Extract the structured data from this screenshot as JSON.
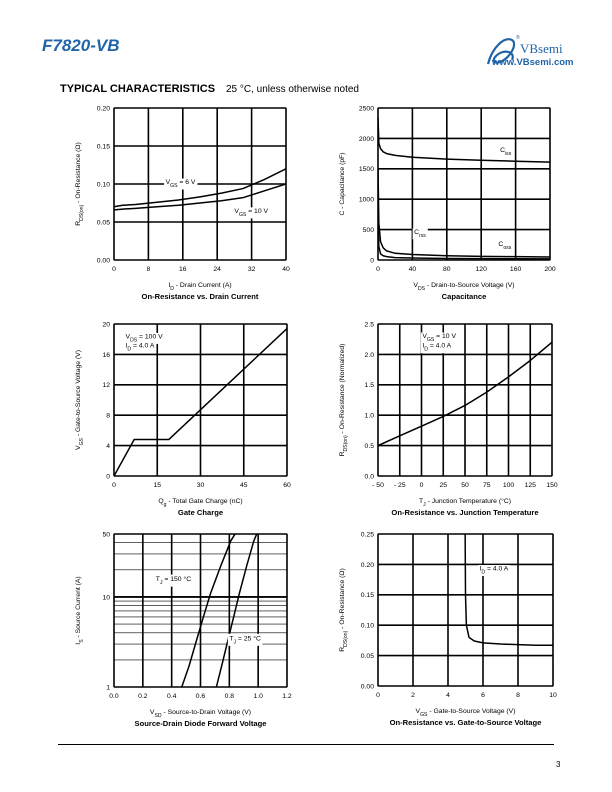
{
  "header": {
    "part_number": "F7820-VB",
    "brand_name": "VBsemi",
    "brand_url": "www.VBsemi.com",
    "registered_mark": "®",
    "brand_color": "#1f63a8"
  },
  "section": {
    "title": "TYPICAL CHARACTERISTICS",
    "subtitle": "25 °C, unless otherwise noted"
  },
  "footer": {
    "page_number": "3"
  },
  "chart_data": [
    {
      "id": "c1",
      "type": "line",
      "title": "On-Resistance vs. Drain Current",
      "xlabel": "I_D - Drain Current (A)",
      "ylabel": "R_DS(on) - On-Resistance (Ω)",
      "xlim": [
        0,
        40
      ],
      "ylim": [
        0,
        0.2
      ],
      "xticks": [
        0,
        8,
        16,
        24,
        32,
        40
      ],
      "yticks": [
        0,
        0.05,
        0.1,
        0.15,
        0.2
      ],
      "ytick_labels": [
        "0.00",
        "0.05",
        "0.10",
        "0.15",
        "0.20"
      ],
      "grid": true,
      "series": [
        {
          "name": "V_GS = 6 V",
          "x": [
            0,
            2,
            5,
            10,
            15,
            20,
            25,
            30,
            35,
            40
          ],
          "y": [
            0.07,
            0.072,
            0.073,
            0.076,
            0.079,
            0.083,
            0.088,
            0.094,
            0.106,
            0.12
          ]
        },
        {
          "name": "V_GS = 10 V",
          "x": [
            0,
            2,
            5,
            10,
            15,
            20,
            25,
            30,
            35,
            40
          ],
          "y": [
            0.066,
            0.067,
            0.068,
            0.07,
            0.072,
            0.075,
            0.078,
            0.082,
            0.091,
            0.1
          ]
        }
      ],
      "annotations": [
        {
          "text": "V_GS = 6 V",
          "x": 12,
          "y": 0.1
        },
        {
          "text": "V_GS = 10 V",
          "x": 28,
          "y": 0.062
        }
      ]
    },
    {
      "id": "c2",
      "type": "line",
      "title": "Capacitance",
      "xlabel": "V_DS - Drain-to-Source Voltage (V)",
      "ylabel": "C - Capacitance (pF)",
      "xlim": [
        0,
        200
      ],
      "ylim": [
        0,
        2500
      ],
      "xticks": [
        0,
        40,
        80,
        120,
        160,
        200
      ],
      "yticks": [
        0,
        500,
        1000,
        1500,
        2000,
        2500
      ],
      "grid": true,
      "series": [
        {
          "name": "C_iss",
          "x": [
            0,
            1,
            3,
            6,
            10,
            20,
            40,
            80,
            120,
            160,
            200
          ],
          "y": [
            2350,
            1920,
            1830,
            1780,
            1750,
            1720,
            1690,
            1660,
            1640,
            1625,
            1610
          ]
        },
        {
          "name": "C_rss",
          "x": [
            0,
            1,
            3,
            6,
            10,
            20,
            40,
            80,
            120,
            160,
            200
          ],
          "y": [
            1500,
            600,
            300,
            200,
            150,
            110,
            90,
            70,
            60,
            55,
            50
          ]
        },
        {
          "name": "C_oss",
          "x": [
            0,
            1,
            3,
            6,
            10,
            20,
            40,
            80,
            120,
            160,
            200
          ],
          "y": [
            700,
            220,
            100,
            70,
            55,
            40,
            32,
            25,
            22,
            20,
            18
          ]
        }
      ],
      "annotations": [
        {
          "text": "C_iss",
          "x": 142,
          "y": 1780
        },
        {
          "text": "C_rss",
          "x": 42,
          "y": 430
        },
        {
          "text": "C_oss",
          "x": 140,
          "y": 230
        }
      ]
    },
    {
      "id": "c3",
      "type": "line",
      "title": "Gate Charge",
      "xlabel": "Q_g - Total Gate Charge (nC)",
      "ylabel": "V_GS - Gate-to-Source Voltage (V)",
      "xlim": [
        0,
        60
      ],
      "ylim": [
        0,
        20
      ],
      "xticks": [
        0,
        15,
        30,
        45,
        60
      ],
      "yticks": [
        0,
        4,
        8,
        12,
        16,
        20
      ],
      "grid": true,
      "series": [
        {
          "name": "V_GS",
          "x": [
            0,
            7,
            19,
            60
          ],
          "y": [
            0,
            4.8,
            4.8,
            19.4
          ]
        }
      ],
      "annotations": [
        {
          "text": "V_DS = 100 V",
          "x": 4,
          "y": 18.1
        },
        {
          "text": "I_D = 4.0 A",
          "x": 4,
          "y": 16.9
        }
      ]
    },
    {
      "id": "c4",
      "type": "line",
      "title": "On-Resistance vs. Junction Temperature",
      "xlabel": "T_J - Junction Temperature (°C)",
      "ylabel": "R_DS(on) - On-Resistance (Normalized)",
      "xlim": [
        -50,
        150
      ],
      "ylim": [
        0,
        2.5
      ],
      "xticks": [
        -50,
        -25,
        0,
        25,
        50,
        75,
        100,
        125,
        150
      ],
      "xtick_labels": [
        "- 50",
        "- 25",
        "0",
        "25",
        "50",
        "75",
        "100",
        "125",
        "150"
      ],
      "yticks": [
        0,
        0.5,
        1,
        1.5,
        2,
        2.5
      ],
      "ytick_labels": [
        "0.0",
        "0.5",
        "1.0",
        "1.5",
        "2.0",
        "2.5"
      ],
      "grid": true,
      "series": [
        {
          "name": "R_DS(on)",
          "x": [
            -50,
            -25,
            0,
            25,
            50,
            75,
            100,
            125,
            150
          ],
          "y": [
            0.5,
            0.66,
            0.82,
            0.98,
            1.16,
            1.38,
            1.63,
            1.9,
            2.2
          ]
        }
      ],
      "annotations": [
        {
          "text": "V_GS = 10 V",
          "x": 1,
          "y": 2.27
        },
        {
          "text": "I_D = 4.0 A",
          "x": 1,
          "y": 2.11
        }
      ]
    },
    {
      "id": "c5",
      "type": "line",
      "title": "Source-Drain Diode Forward Voltage",
      "xlabel": "V_SD - Source-to-Drain Voltage (V)",
      "ylabel": "I_S - Source Current (A)",
      "xlim": [
        0,
        1.2
      ],
      "ylim": [
        1,
        50
      ],
      "yscale": "log",
      "xticks": [
        0,
        0.2,
        0.4,
        0.6,
        0.8,
        1.0,
        1.2
      ],
      "xtick_labels": [
        "0.0",
        "0.2",
        "0.4",
        "0.6",
        "0.8",
        "1.0",
        "1.2"
      ],
      "yticks": [
        1,
        10,
        50
      ],
      "grid": true,
      "series": [
        {
          "name": "T_J = 150 °C",
          "x": [
            0.47,
            0.52,
            0.57,
            0.62,
            0.67,
            0.74,
            0.81,
            0.84
          ],
          "y": [
            1,
            1.7,
            3.2,
            6,
            11,
            22,
            42,
            50
          ]
        },
        {
          "name": "T_J = 25 °C",
          "x": [
            0.71,
            0.75,
            0.79,
            0.83,
            0.87,
            0.92,
            0.97,
            0.99
          ],
          "y": [
            1,
            1.8,
            3.3,
            6,
            11,
            22,
            42,
            50
          ]
        }
      ],
      "annotations": [
        {
          "text": "T_J = 150 °C",
          "x": 0.29,
          "y": 15
        },
        {
          "text": "T_J = 25 °C",
          "x": 0.8,
          "y": 3.3
        }
      ]
    },
    {
      "id": "c6",
      "type": "line",
      "title": "On-Resistance vs. Gate-to-Source Voltage",
      "xlabel": "V_GS - Gate-to-Source Voltage (V)",
      "ylabel": "R_DS(on) - On-Resistance (Ω)",
      "xlim": [
        0,
        10
      ],
      "ylim": [
        0,
        0.25
      ],
      "xticks": [
        0,
        2,
        4,
        6,
        8,
        10
      ],
      "yticks": [
        0,
        0.05,
        0.1,
        0.15,
        0.2,
        0.25
      ],
      "ytick_labels": [
        "0.00",
        "0.05",
        "0.10",
        "0.15",
        "0.20",
        "0.25"
      ],
      "grid": true,
      "series": [
        {
          "name": "R_DS(on)",
          "x": [
            4.98,
            5.0,
            5.05,
            5.2,
            5.5,
            6,
            7,
            8,
            9,
            10
          ],
          "y": [
            0.25,
            0.15,
            0.1,
            0.08,
            0.074,
            0.071,
            0.069,
            0.068,
            0.067,
            0.067
          ]
        }
      ],
      "annotations": [
        {
          "text": "I_D = 4.0 A",
          "x": 5.8,
          "y": 0.19
        }
      ]
    }
  ]
}
